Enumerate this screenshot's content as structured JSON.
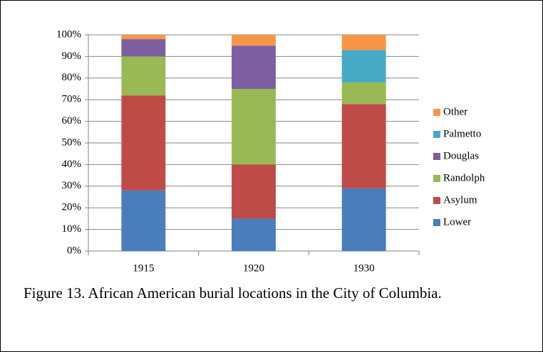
{
  "chart_data": {
    "type": "stacked_bar",
    "categories": [
      "1915",
      "1920",
      "1930"
    ],
    "series": [
      {
        "name": "Lower",
        "color": "#4a7ebb",
        "values": [
          28,
          15,
          29
        ]
      },
      {
        "name": "Asylum",
        "color": "#be4b48",
        "values": [
          44,
          25,
          39
        ]
      },
      {
        "name": "Randolph",
        "color": "#98b954",
        "values": [
          18,
          35,
          10
        ]
      },
      {
        "name": "Douglas",
        "color": "#7d5fa0",
        "values": [
          8,
          20,
          0
        ]
      },
      {
        "name": "Palmetto",
        "color": "#46aac5",
        "values": [
          0,
          0,
          15
        ]
      },
      {
        "name": "Other",
        "color": "#f79646",
        "values": [
          2,
          5,
          7
        ]
      }
    ],
    "ylim": [
      0,
      100
    ],
    "yticks": [
      {
        "value": 0,
        "label": "0%"
      },
      {
        "value": 10,
        "label": "10%"
      },
      {
        "value": 20,
        "label": "20%"
      },
      {
        "value": 30,
        "label": "30%"
      },
      {
        "value": 40,
        "label": "40%"
      },
      {
        "value": 50,
        "label": "50%"
      },
      {
        "value": 60,
        "label": "60%"
      },
      {
        "value": 70,
        "label": "70%"
      },
      {
        "value": 80,
        "label": "80%"
      },
      {
        "value": 90,
        "label": "90%"
      },
      {
        "value": 100,
        "label": "100%"
      }
    ],
    "grid": true,
    "legend": "right"
  },
  "caption": "Figure 13. African American burial locations in the City of Columbia."
}
